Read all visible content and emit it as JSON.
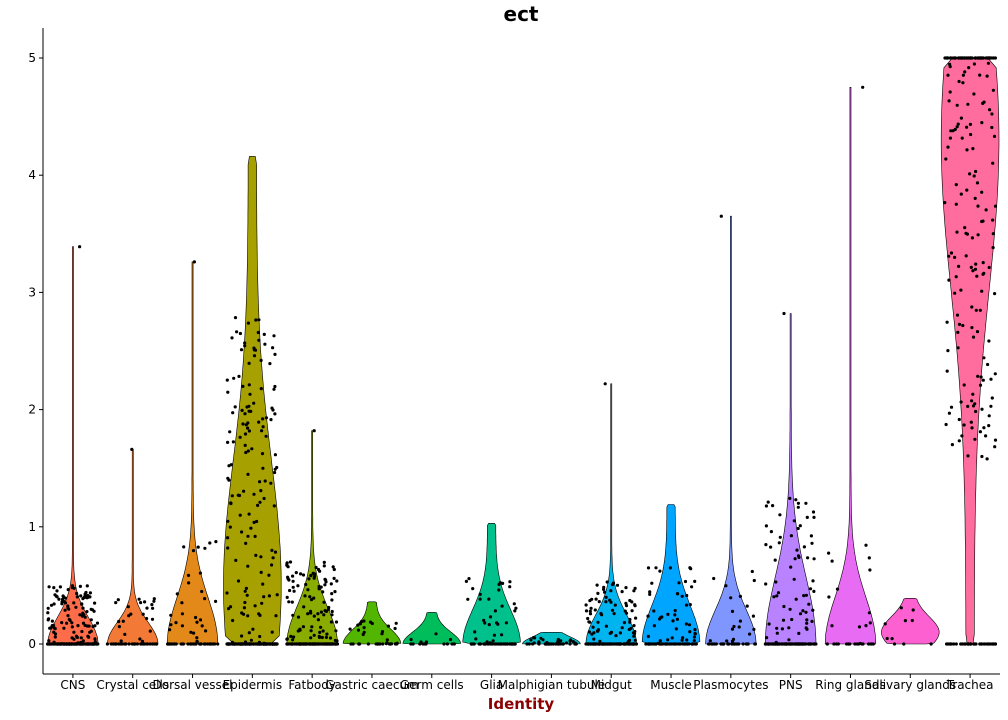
{
  "chart_data": {
    "type": "violin",
    "title": "ect",
    "xlabel": "Identity",
    "ylabel": "",
    "ylim": [
      -0.25,
      5.25
    ],
    "yticks": [
      0,
      1,
      2,
      3,
      4,
      5
    ],
    "categories": [
      "CNS",
      "Crystal cells",
      "Dorsal vessel",
      "Epidermis",
      "Fatbody",
      "Gastric caecum",
      "Germ cells",
      "Glia",
      "Malphigian tubule",
      "Midgut",
      "Muscle",
      "Plasmocytes",
      "PNS",
      "Ring glands",
      "Salivary glands",
      "Trachea"
    ],
    "series": [
      {
        "category": "CNS",
        "max": 3.39,
        "median": 0.0,
        "color": "#ff6c4a",
        "dense_to": 0.5,
        "n_points": 240
      },
      {
        "category": "Crystal cells",
        "max": 1.66,
        "median": 0.0,
        "color": "#f27a36",
        "dense_to": 0.4,
        "n_points": 60
      },
      {
        "category": "Dorsal vessel",
        "max": 3.26,
        "median": 0.0,
        "color": "#e3891a",
        "dense_to": 0.9,
        "n_points": 70
      },
      {
        "category": "Epidermis",
        "max": 4.16,
        "median": 0.5,
        "color": "#a6a000",
        "dense_to": 4.16,
        "n_points": 300
      },
      {
        "category": "Fatbody",
        "max": 1.82,
        "median": 0.0,
        "color": "#8aab00",
        "dense_to": 0.7,
        "n_points": 220
      },
      {
        "category": "Gastric caecum",
        "max": 0.36,
        "median": 0.0,
        "color": "#52b500",
        "dense_to": 0.36,
        "n_points": 40
      },
      {
        "category": "Germ cells",
        "max": 0.27,
        "median": 0.0,
        "color": "#00bd5c",
        "dense_to": 0.27,
        "n_points": 15
      },
      {
        "category": "Glia",
        "max": 1.03,
        "median": 0.0,
        "color": "#00c08b",
        "dense_to": 1.03,
        "n_points": 80
      },
      {
        "category": "Malphigian tubule",
        "max": 0.1,
        "median": 0.0,
        "color": "#00bfc4",
        "dense_to": 0.1,
        "n_points": 50
      },
      {
        "category": "Midgut",
        "max": 2.22,
        "median": 0.0,
        "color": "#00b4f0",
        "dense_to": 0.55,
        "n_points": 180
      },
      {
        "category": "Muscle",
        "max": 1.19,
        "median": 0.0,
        "color": "#00a5ff",
        "dense_to": 1.19,
        "n_points": 100
      },
      {
        "category": "Plasmocytes",
        "max": 3.65,
        "median": 0.0,
        "color": "#7f96ff",
        "dense_to": 0.65,
        "n_points": 50
      },
      {
        "category": "PNS",
        "max": 2.82,
        "median": 0.1,
        "color": "#b983ff",
        "dense_to": 1.3,
        "n_points": 170
      },
      {
        "category": "Ring glands",
        "max": 4.75,
        "median": 0.2,
        "color": "#e76bf3",
        "dense_to": 0.9,
        "n_points": 30
      },
      {
        "category": "Salivary glands",
        "max": 0.39,
        "median": 0.1,
        "color": "#fd61d1",
        "dense_to": 0.39,
        "n_points": 10
      },
      {
        "category": "Trachea",
        "max": 5.0,
        "median": 4.3,
        "color": "#ff6c9e",
        "dense_to": 5.0,
        "n_points": 260
      }
    ]
  }
}
